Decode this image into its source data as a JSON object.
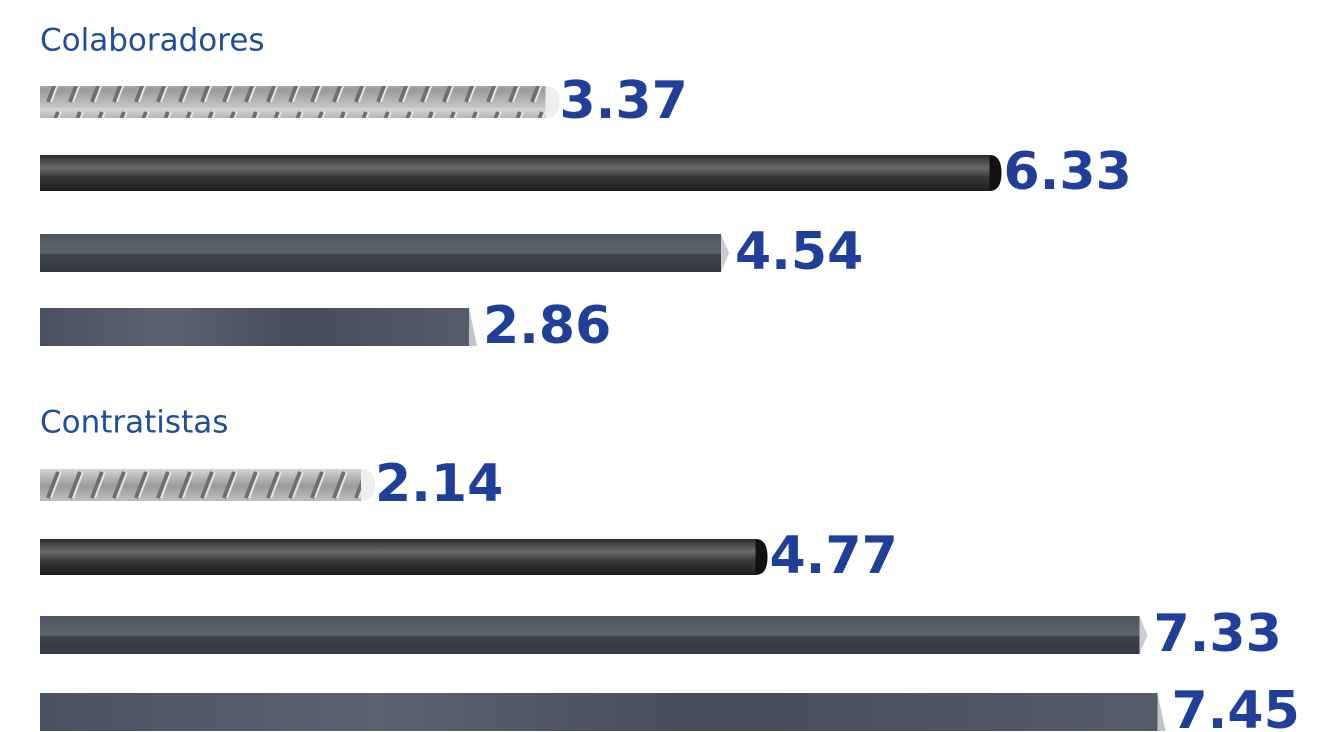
{
  "chart_data": [
    {
      "type": "bar",
      "title": "Colaboradores",
      "values": [
        3.37,
        6.33,
        4.54,
        2.86
      ]
    },
    {
      "type": "bar",
      "title": "Contratistas",
      "values": [
        2.14,
        4.77,
        7.33,
        7.45
      ]
    }
  ]
}
